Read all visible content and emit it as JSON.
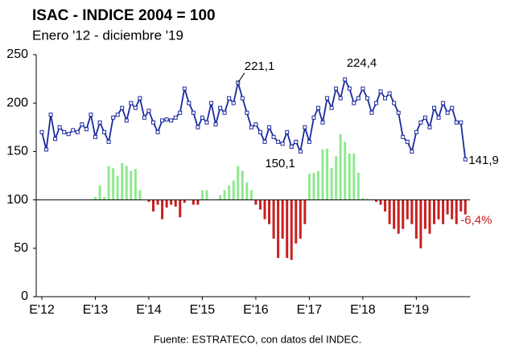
{
  "chart_data": {
    "type": "line_bar",
    "title": "ISAC - INDICE 2004 = 100",
    "subtitle": "Enero '12 - diciembre '19",
    "source": "Fuente: ESTRATECO, con datos del INDEC.",
    "categories": [
      "E'12",
      null,
      null,
      null,
      null,
      null,
      null,
      null,
      null,
      null,
      null,
      null,
      "E'13",
      null,
      null,
      null,
      null,
      null,
      null,
      null,
      null,
      null,
      null,
      null,
      "E'14",
      null,
      null,
      null,
      null,
      null,
      null,
      null,
      null,
      null,
      null,
      null,
      "E'15",
      null,
      null,
      null,
      null,
      null,
      null,
      null,
      null,
      null,
      null,
      null,
      "E'16",
      null,
      null,
      null,
      null,
      null,
      null,
      null,
      null,
      null,
      null,
      null,
      "E'17",
      null,
      null,
      null,
      null,
      null,
      null,
      null,
      null,
      null,
      null,
      null,
      "E'18",
      null,
      null,
      null,
      null,
      null,
      null,
      null,
      null,
      null,
      null,
      null,
      "E'19",
      null,
      null,
      null,
      null,
      null,
      null,
      null,
      null,
      null,
      null,
      null
    ],
    "ylim": [
      0,
      250
    ],
    "yticks": [
      0,
      50,
      100,
      150,
      200,
      250
    ],
    "baseline": 100,
    "series": [
      {
        "kind": "line",
        "color": "#1a2a9c",
        "values": [
          170,
          152,
          188,
          163,
          175,
          170,
          168,
          172,
          170,
          178,
          173,
          188,
          165,
          180,
          170,
          160,
          185,
          188,
          195,
          182,
          200,
          195,
          205,
          185,
          192,
          180,
          170,
          182,
          183,
          182,
          185,
          190,
          215,
          200,
          190,
          175,
          185,
          180,
          200,
          178,
          195,
          190,
          205,
          200,
          221.1,
          205,
          190,
          175,
          178,
          170,
          160,
          175,
          165,
          160,
          158,
          170,
          155,
          160,
          150.1,
          175,
          160,
          185,
          195,
          180,
          205,
          195,
          215,
          205,
          224.4,
          215,
          200,
          205,
          215,
          205,
          190,
          200,
          212,
          205,
          210,
          200,
          190,
          165,
          160,
          150,
          170,
          180,
          185,
          175,
          195,
          185,
          200,
          190,
          195,
          180,
          180,
          141.9
        ],
        "value_labels": [
          null,
          null,
          null,
          null,
          null,
          null,
          null,
          null,
          null,
          null,
          null,
          null,
          null,
          null,
          null,
          null,
          null,
          null,
          null,
          null,
          null,
          null,
          null,
          null,
          null,
          null,
          null,
          null,
          null,
          null,
          null,
          null,
          null,
          null,
          null,
          null,
          null,
          null,
          null,
          null,
          null,
          null,
          null,
          null,
          "221,1",
          null,
          null,
          null,
          null,
          null,
          null,
          null,
          null,
          null,
          null,
          null,
          null,
          null,
          "150,1",
          null,
          null,
          null,
          null,
          null,
          null,
          null,
          null,
          null,
          "224,4",
          null,
          null,
          null,
          null,
          null,
          null,
          null,
          null,
          null,
          null,
          null,
          null,
          null,
          null,
          null,
          null,
          null,
          null,
          null,
          null,
          null,
          null,
          null,
          null,
          null,
          null,
          "141,9"
        ]
      },
      {
        "kind": "bar",
        "positive_color": "#90e890",
        "negative_color": "#c82020",
        "values": [
          null,
          null,
          null,
          null,
          null,
          null,
          null,
          null,
          null,
          null,
          null,
          null,
          103,
          115,
          103,
          135,
          133,
          125,
          138,
          135,
          130,
          132,
          110,
          100,
          98,
          88,
          95,
          80,
          92,
          95,
          93,
          82,
          97,
          100,
          95,
          95,
          110,
          110,
          100,
          100,
          105,
          110,
          115,
          120,
          135,
          130,
          118,
          110,
          95,
          90,
          80,
          75,
          60,
          40,
          60,
          40,
          38,
          55,
          60,
          75,
          127,
          128,
          130,
          152,
          153,
          133,
          145,
          168,
          160,
          148,
          148,
          128,
          102,
          101,
          100,
          98,
          95,
          88,
          75,
          70,
          65,
          70,
          80,
          75,
          60,
          50,
          70,
          65,
          75,
          80,
          75,
          85,
          80,
          75,
          88,
          85
        ]
      }
    ],
    "annotations": [
      {
        "text": "-6,4%",
        "color": "#c82020"
      }
    ]
  }
}
